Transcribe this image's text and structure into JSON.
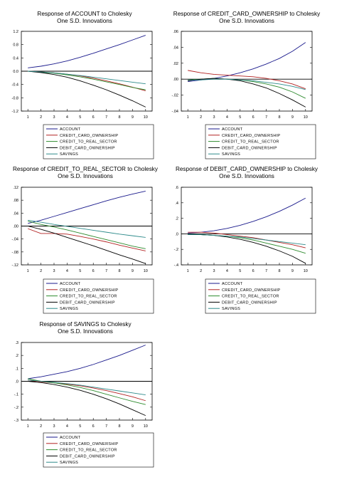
{
  "legend_entries": [
    "ACCOUNT",
    "CREDIT_CARD_OWNERSHIP",
    "CREDIT_TO_REAL_SECTOR",
    "DEBIT_CARD_OWNERSHIP",
    "SAVINGS"
  ],
  "series_colors": [
    "#1a1a8c",
    "#b22222",
    "#2e8b2e",
    "#000000",
    "#2e8b8b"
  ],
  "chart_data": [
    {
      "type": "line",
      "title": "Response of ACCOUNT to Cholesky",
      "subtitle": "One S.D. Innovations",
      "x": [
        1,
        2,
        3,
        4,
        5,
        6,
        7,
        8,
        9,
        10
      ],
      "ylim": [
        -1.2,
        1.2
      ],
      "yticks": [
        1.2,
        0.8,
        0.4,
        0.0,
        -0.4,
        -0.8,
        -1.2
      ],
      "ytick_labels": [
        "1.2",
        "0.8",
        "0.4",
        "0.0",
        "-0.4",
        "-0.8",
        "-1.2"
      ],
      "series": [
        {
          "name": "ACCOUNT",
          "values": [
            0.1,
            0.15,
            0.22,
            0.31,
            0.42,
            0.54,
            0.67,
            0.8,
            0.94,
            1.08
          ]
        },
        {
          "name": "CREDIT_CARD_OWNERSHIP",
          "values": [
            0.0,
            -0.02,
            -0.05,
            -0.09,
            -0.14,
            -0.21,
            -0.29,
            -0.38,
            -0.48,
            -0.59
          ]
        },
        {
          "name": "CREDIT_TO_REAL_SECTOR",
          "values": [
            0.0,
            -0.03,
            -0.06,
            -0.11,
            -0.17,
            -0.24,
            -0.32,
            -0.4,
            -0.49,
            -0.56
          ]
        },
        {
          "name": "DEBIT_CARD_OWNERSHIP",
          "values": [
            0.0,
            -0.04,
            -0.1,
            -0.18,
            -0.29,
            -0.42,
            -0.56,
            -0.72,
            -0.89,
            -1.08
          ]
        },
        {
          "name": "SAVINGS",
          "values": [
            0.0,
            -0.02,
            -0.05,
            -0.09,
            -0.13,
            -0.18,
            -0.23,
            -0.28,
            -0.33,
            -0.38
          ]
        }
      ]
    },
    {
      "type": "line",
      "title": "Response of CREDIT_CARD_OWNERSHIP to Cholesky",
      "subtitle": "One S.D. Innovations",
      "x": [
        1,
        2,
        3,
        4,
        5,
        6,
        7,
        8,
        9,
        10
      ],
      "ylim": [
        -0.04,
        0.06
      ],
      "yticks": [
        0.06,
        0.04,
        0.02,
        0.0,
        -0.02,
        -0.04
      ],
      "ytick_labels": [
        ".06",
        ".04",
        ".02",
        ".00",
        "-.02",
        "-.04"
      ],
      "series": [
        {
          "name": "ACCOUNT",
          "values": [
            -0.003,
            -0.001,
            0.001,
            0.004,
            0.008,
            0.013,
            0.019,
            0.026,
            0.035,
            0.046
          ]
        },
        {
          "name": "CREDIT_CARD_OWNERSHIP",
          "values": [
            0.011,
            0.008,
            0.006,
            0.005,
            0.004,
            0.003,
            0.001,
            -0.002,
            -0.006,
            -0.012
          ]
        },
        {
          "name": "CREDIT_TO_REAL_SECTOR",
          "values": [
            -0.001,
            0.0,
            0.001,
            0.0,
            -0.001,
            -0.003,
            -0.006,
            -0.01,
            -0.016,
            -0.024
          ]
        },
        {
          "name": "DEBIT_CARD_OWNERSHIP",
          "values": [
            -0.002,
            0.0,
            0.001,
            0.0,
            -0.002,
            -0.006,
            -0.011,
            -0.018,
            -0.026,
            -0.035
          ]
        },
        {
          "name": "SAVINGS",
          "values": [
            -0.001,
            -0.001,
            0.0,
            0.0,
            -0.001,
            -0.002,
            -0.004,
            -0.006,
            -0.009,
            -0.013
          ]
        }
      ]
    },
    {
      "type": "line",
      "title": "Response of CREDIT_TO_REAL_SECTOR to Cholesky",
      "subtitle": "One S.D. Innovations",
      "x": [
        1,
        2,
        3,
        4,
        5,
        6,
        7,
        8,
        9,
        10
      ],
      "ylim": [
        -0.12,
        0.12
      ],
      "yticks": [
        0.12,
        0.08,
        0.04,
        0.0,
        -0.04,
        -0.08,
        -0.12
      ],
      "ytick_labels": [
        ".12",
        ".08",
        ".04",
        ".00",
        "-.04",
        "-.08",
        "-.12"
      ],
      "series": [
        {
          "name": "ACCOUNT",
          "values": [
            0.008,
            0.018,
            0.03,
            0.042,
            0.054,
            0.066,
            0.078,
            0.089,
            0.099,
            0.108
          ]
        },
        {
          "name": "CREDIT_CARD_OWNERSHIP",
          "values": [
            -0.008,
            -0.023,
            -0.023,
            -0.025,
            -0.032,
            -0.04,
            -0.049,
            -0.059,
            -0.068,
            -0.077
          ]
        },
        {
          "name": "CREDIT_TO_REAL_SECTOR",
          "values": [
            0.015,
            0.005,
            -0.003,
            -0.012,
            -0.022,
            -0.032,
            -0.042,
            -0.052,
            -0.062,
            -0.07
          ]
        },
        {
          "name": "DEBIT_CARD_OWNERSHIP",
          "values": [
            0.0,
            -0.01,
            -0.022,
            -0.035,
            -0.048,
            -0.061,
            -0.075,
            -0.089,
            -0.102,
            -0.116
          ]
        },
        {
          "name": "SAVINGS",
          "values": [
            0.018,
            0.012,
            0.005,
            -0.001,
            -0.007,
            -0.013,
            -0.019,
            -0.025,
            -0.03,
            -0.035
          ]
        }
      ]
    },
    {
      "type": "line",
      "title": "Response of DEBIT_CARD_OWNERSHIP to Cholesky",
      "subtitle": "One S.D. Innovations",
      "x": [
        1,
        2,
        3,
        4,
        5,
        6,
        7,
        8,
        9,
        10
      ],
      "ylim": [
        -0.4,
        0.6
      ],
      "yticks": [
        0.6,
        0.4,
        0.2,
        0.0,
        -0.2,
        -0.4
      ],
      "ytick_labels": [
        ".6",
        ".4",
        ".2",
        ".0",
        "-.2",
        "-.4"
      ],
      "series": [
        {
          "name": "ACCOUNT",
          "values": [
            0.01,
            0.02,
            0.04,
            0.07,
            0.11,
            0.16,
            0.22,
            0.29,
            0.37,
            0.46
          ]
        },
        {
          "name": "CREDIT_CARD_OWNERSHIP",
          "values": [
            0.02,
            0.02,
            0.01,
            -0.01,
            -0.03,
            -0.05,
            -0.08,
            -0.11,
            -0.14,
            -0.18
          ]
        },
        {
          "name": "CREDIT_TO_REAL_SECTOR",
          "values": [
            -0.01,
            -0.01,
            -0.02,
            -0.03,
            -0.05,
            -0.08,
            -0.12,
            -0.16,
            -0.2,
            -0.25
          ]
        },
        {
          "name": "DEBIT_CARD_OWNERSHIP",
          "values": [
            0.0,
            -0.01,
            -0.02,
            -0.04,
            -0.07,
            -0.11,
            -0.16,
            -0.22,
            -0.29,
            -0.38
          ]
        },
        {
          "name": "SAVINGS",
          "values": [
            -0.01,
            -0.01,
            -0.02,
            -0.03,
            -0.04,
            -0.06,
            -0.08,
            -0.1,
            -0.12,
            -0.14
          ]
        }
      ]
    },
    {
      "type": "line",
      "title": "Response of SAVINGS to Cholesky",
      "subtitle": "One S.D. Innovations",
      "x": [
        1,
        2,
        3,
        4,
        5,
        6,
        7,
        8,
        9,
        10
      ],
      "ylim": [
        -0.3,
        0.3
      ],
      "yticks": [
        0.3,
        0.2,
        0.1,
        0.0,
        -0.1,
        -0.2,
        -0.3
      ],
      "ytick_labels": [
        ".3",
        ".2",
        ".1",
        ".0",
        "-.1",
        "-.2",
        "-.3"
      ],
      "series": [
        {
          "name": "ACCOUNT",
          "values": [
            0.02,
            0.035,
            0.055,
            0.075,
            0.1,
            0.13,
            0.165,
            0.2,
            0.24,
            0.28
          ]
        },
        {
          "name": "CREDIT_CARD_OWNERSHIP",
          "values": [
            0.01,
            -0.005,
            -0.012,
            -0.022,
            -0.035,
            -0.052,
            -0.072,
            -0.095,
            -0.12,
            -0.15
          ]
        },
        {
          "name": "CREDIT_TO_REAL_SECTOR",
          "values": [
            0.02,
            0.0,
            -0.012,
            -0.028,
            -0.048,
            -0.072,
            -0.1,
            -0.128,
            -0.155,
            -0.18
          ]
        },
        {
          "name": "DEBIT_CARD_OWNERSHIP",
          "values": [
            0.0,
            -0.01,
            -0.025,
            -0.045,
            -0.07,
            -0.1,
            -0.135,
            -0.175,
            -0.22,
            -0.265
          ]
        },
        {
          "name": "SAVINGS",
          "values": [
            0.01,
            0.0,
            -0.008,
            -0.018,
            -0.03,
            -0.045,
            -0.06,
            -0.075,
            -0.09,
            -0.105
          ]
        }
      ]
    }
  ]
}
